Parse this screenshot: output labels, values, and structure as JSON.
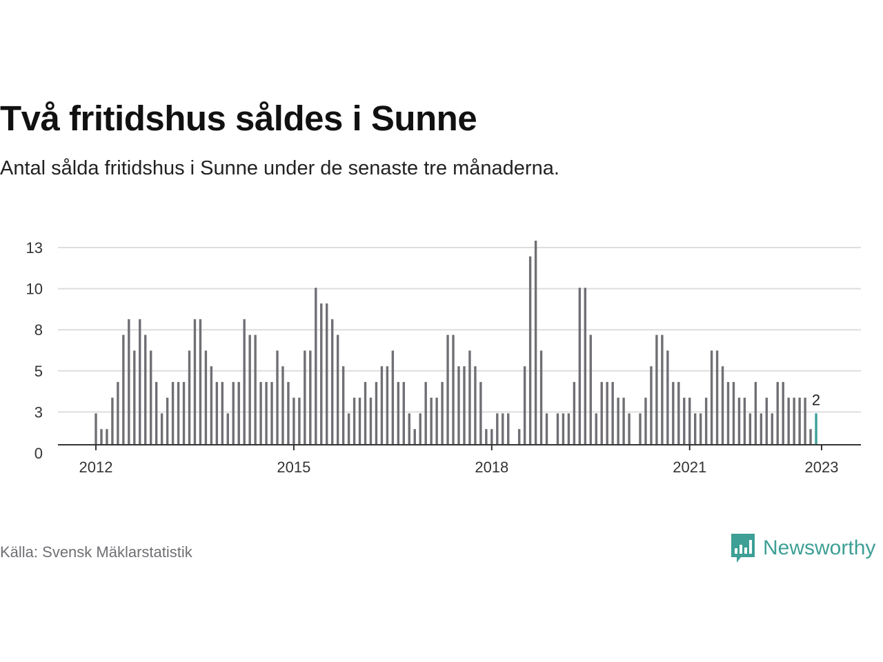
{
  "header": {
    "title": "Två fritidshus såldes i Sunne",
    "subtitle": "Antal sålda fritidshus i Sunne under de senaste tre månaderna."
  },
  "footer": {
    "source": "Källa: Svensk Mäklarstatistik",
    "brand": "Newsworthy",
    "brand_icon": "newsworthy-logo-icon"
  },
  "colors": {
    "bar": "#6f6f74",
    "highlight": "#3d9f95",
    "grid": "#dddddd",
    "axis": "#333333"
  },
  "chart_data": {
    "type": "bar",
    "x_start": "2012-01",
    "x_end": "2023-01",
    "x_tick_labels": [
      "2012",
      "2015",
      "2018",
      "2021",
      "2023"
    ],
    "y_tick_labels": [
      "0",
      "3",
      "5",
      "8",
      "10",
      "13"
    ],
    "ylim": [
      0,
      13
    ],
    "values": [
      2,
      1,
      1,
      3,
      4,
      7,
      8,
      6,
      8,
      7,
      6,
      4,
      2,
      3,
      4,
      4,
      4,
      6,
      8,
      8,
      6,
      5,
      4,
      4,
      2,
      4,
      4,
      8,
      7,
      7,
      4,
      4,
      4,
      6,
      5,
      4,
      3,
      3,
      6,
      6,
      10,
      9,
      9,
      8,
      7,
      5,
      2,
      3,
      3,
      4,
      3,
      4,
      5,
      5,
      6,
      4,
      4,
      2,
      1,
      2,
      4,
      3,
      3,
      4,
      7,
      7,
      5,
      5,
      6,
      5,
      4,
      1,
      1,
      2,
      2,
      2,
      0,
      1,
      5,
      12,
      13,
      6,
      2,
      0,
      2,
      2,
      2,
      4,
      10,
      10,
      7,
      2,
      4,
      4,
      4,
      3,
      3,
      2,
      0,
      2,
      3,
      5,
      7,
      7,
      6,
      4,
      4,
      3,
      3,
      2,
      2,
      3,
      6,
      6,
      5,
      4,
      4,
      3,
      3,
      2,
      4,
      2,
      3,
      2,
      4,
      4,
      3,
      3,
      3,
      3,
      1,
      2
    ],
    "highlight_label": "2"
  }
}
